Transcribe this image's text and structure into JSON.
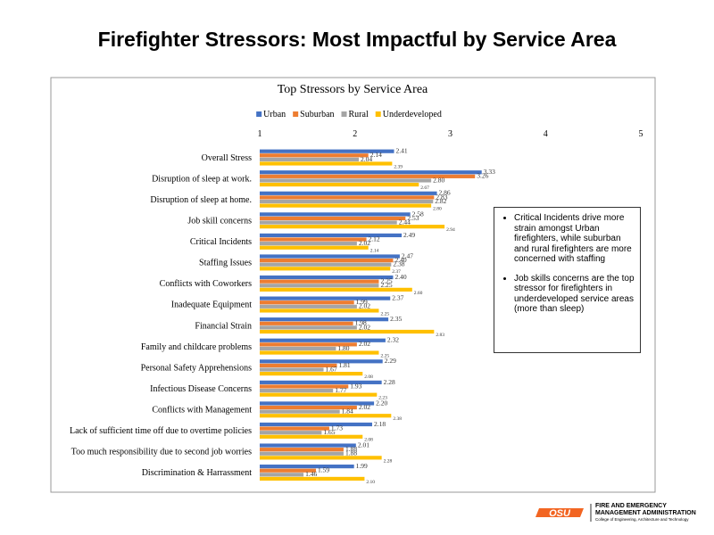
{
  "slide_title": "Firefighter Stressors: Most Impactful by Service Area",
  "chart_data": {
    "type": "hbar",
    "title": "Top Stressors by Service Area",
    "categories": [
      "Overall Stress",
      "Disruption of sleep at work.",
      "Disruption of sleep at home.",
      "Job skill concerns",
      "Critical Incidents",
      "Staffing Issues",
      "Conflicts with Coworkers",
      "Inadequate Equipment",
      "Financial Strain",
      "Family and childcare problems",
      "Personal Safety Apprehensions",
      "Infectious Disease Concerns",
      "Conflicts with Management",
      "Lack of sufficient time off due to overtime policies",
      "Too much responsibility due to second job worries",
      "Discrimination & Harrassment"
    ],
    "series": [
      {
        "name": "Urban",
        "color": "#4472c4",
        "values": [
          2.41,
          3.33,
          2.86,
          2.58,
          2.49,
          2.47,
          2.4,
          2.37,
          2.35,
          2.32,
          2.29,
          2.28,
          2.2,
          2.18,
          2.01,
          1.99
        ],
        "value_labels": [
          "2.41",
          "3.33",
          "2.86",
          "2.58",
          "2.49",
          "2.47",
          "2.40",
          "2.37",
          "2.35",
          "2.32",
          "2.29",
          "2.28",
          "2.20",
          "2.18",
          "2.01",
          "1.99"
        ]
      },
      {
        "name": "Suburban",
        "color": "#ed7d31",
        "values": [
          2.14,
          3.26,
          2.83,
          2.53,
          2.12,
          2.4,
          2.25,
          1.99,
          1.98,
          2.02,
          1.81,
          1.93,
          2.02,
          1.73,
          1.88,
          1.59
        ],
        "value_labels": [
          "2.14",
          "3.26",
          "2.83",
          "2.53",
          "2.12",
          "2.40",
          "2.25",
          "1.99",
          "1.98",
          "2.02",
          "1.81",
          "1.93",
          "2.02",
          "1.73",
          "1.88",
          "1.59"
        ]
      },
      {
        "name": "Rural",
        "color": "#a5a5a5",
        "values": [
          2.04,
          2.8,
          2.82,
          2.44,
          2.02,
          2.38,
          2.25,
          2.02,
          2.02,
          1.8,
          1.67,
          1.77,
          1.84,
          1.65,
          1.88,
          1.46
        ],
        "value_labels": [
          "2.04",
          "2.80",
          "2.82",
          "2.44",
          "2.02",
          "2.38",
          "2.25",
          "2.02",
          "2.02",
          "1.80",
          "1.67",
          "1.77",
          "1.84",
          "1.65",
          "1.88",
          "1.46"
        ]
      },
      {
        "name": "Underdeveloped",
        "color": "#ffc000",
        "values": [
          2.39,
          2.67,
          2.8,
          2.94,
          2.14,
          2.37,
          2.6,
          2.25,
          2.83,
          2.25,
          2.08,
          2.23,
          2.38,
          2.08,
          2.28,
          2.1
        ],
        "value_labels": [
          "2.39",
          "2.67",
          "2.80",
          "2.94",
          "2.14",
          "2.37",
          "2.60",
          "2.25",
          "2.83",
          "2.25",
          "2.08",
          "2.23",
          "2.38",
          "2.08",
          "2.28",
          "2.10"
        ]
      }
    ],
    "xlim": [
      1,
      5
    ],
    "xticks": [
      1,
      2,
      3,
      4,
      5
    ],
    "grid": false,
    "legend": "top",
    "annotations": [
      "Critical Incidents drive more strain amongst Urban firefighters, while suburban and rural firefighters are more concerned with staffing",
      "Job skills concerns are the top stressor for firefighters in underdeveloped service areas (more than sleep)"
    ]
  },
  "footer": {
    "logo": "OSU",
    "org": "FIRE AND EMERGENCY",
    "org2": "MANAGEMENT ADMINISTRATION",
    "college": "College of Engineering, Architecture and Technology"
  }
}
